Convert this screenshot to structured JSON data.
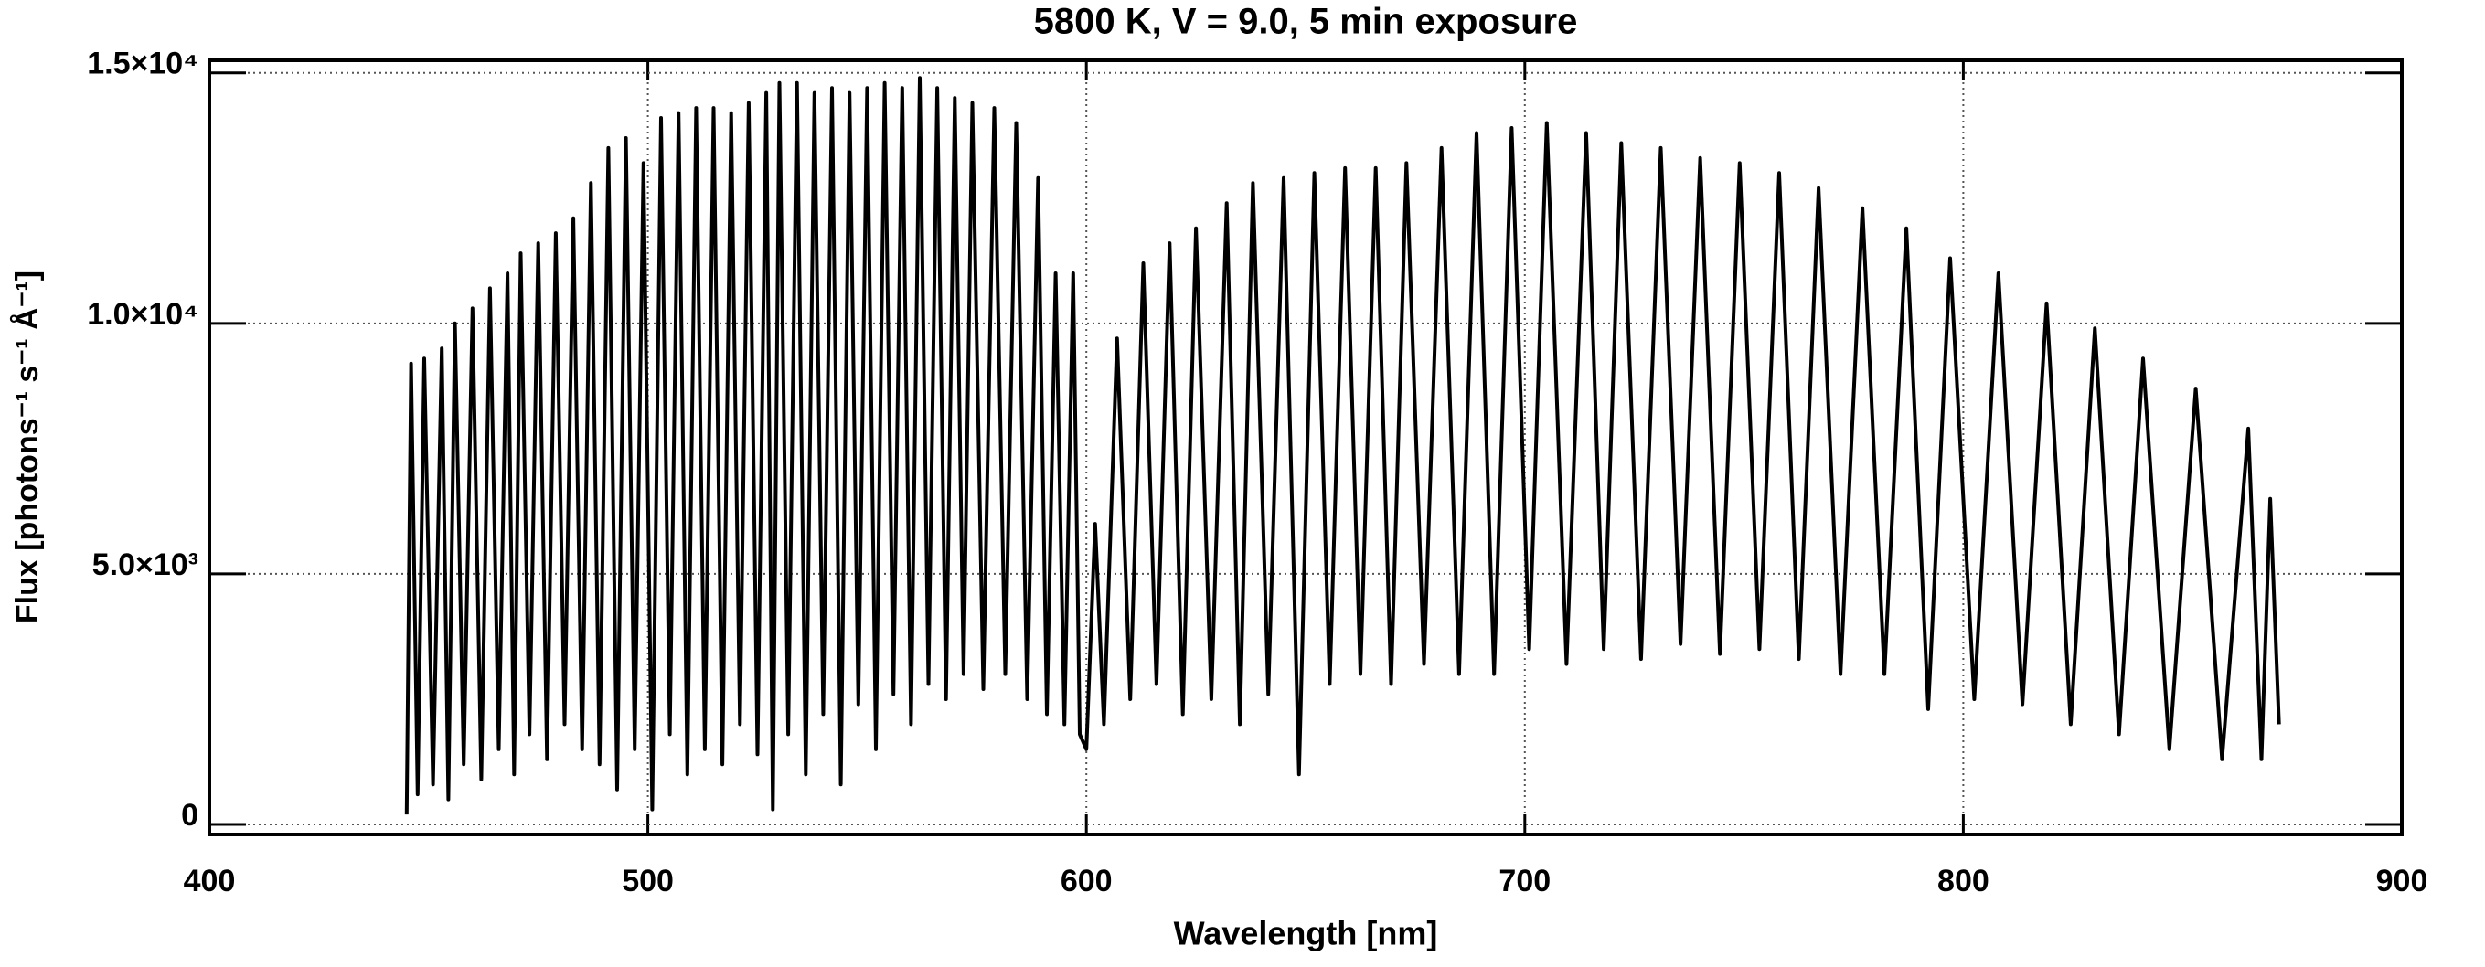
{
  "chart_data": {
    "type": "line",
    "title": "5800 K, V =  9.0, 5 min exposure",
    "x_label": "Wavelength [nm]",
    "y_label": "Flux [photons⁻¹ s⁻¹ Å⁻¹]",
    "xlim": [
      400,
      900
    ],
    "xticks": [
      400,
      500,
      600,
      700,
      800,
      900
    ],
    "ylim": [
      -200,
      15250
    ],
    "yticks": [
      0,
      {
        "value": 5000,
        "label": "5.0×10³"
      },
      {
        "value": 10000,
        "label": "1.0×10⁴"
      },
      {
        "value": 15000,
        "label": "1.5×10⁴"
      }
    ],
    "grid": true,
    "series": [
      {
        "color": "#000000",
        "x": [
          445,
          446,
          447.5,
          449,
          451,
          453,
          454.5,
          456,
          458,
          460,
          462,
          464,
          466,
          468,
          469.5,
          471,
          473,
          475,
          477,
          479,
          481,
          483,
          485,
          487,
          489,
          491,
          493,
          495,
          497,
          499,
          501,
          503,
          505,
          507,
          509,
          511,
          513,
          515,
          517,
          519,
          521,
          523,
          525,
          527,
          528.5,
          530,
          532,
          534,
          536,
          538,
          540,
          542,
          544,
          546,
          548,
          550,
          552,
          554,
          556,
          558,
          560,
          562,
          564,
          566,
          568,
          570,
          572,
          574,
          576.5,
          579,
          581.5,
          584,
          586.5,
          589,
          591,
          593,
          595,
          597,
          598.5,
          600,
          602,
          604,
          607,
          610,
          613,
          616,
          619,
          622,
          625,
          628.5,
          632,
          635,
          638,
          641.5,
          645,
          648.5,
          652,
          655.5,
          659,
          662.5,
          666,
          669.5,
          673,
          677,
          681,
          685,
          689,
          693,
          697,
          701,
          705,
          709.5,
          714,
          718,
          722,
          726.5,
          731,
          735.5,
          740,
          744.5,
          749,
          753.5,
          758,
          762.5,
          767,
          772,
          777,
          782,
          787,
          792,
          797,
          802.5,
          808,
          813.5,
          819,
          824.5,
          830,
          835.5,
          841,
          847,
          853,
          859,
          865,
          868,
          870,
          872
        ],
        "values": [
          200,
          9200,
          600,
          9300,
          800,
          9500,
          500,
          10000,
          1200,
          10300,
          900,
          10700,
          1500,
          11000,
          1000,
          11400,
          1800,
          11600,
          1300,
          11800,
          2000,
          12100,
          1500,
          12800,
          1200,
          13500,
          700,
          13700,
          1500,
          13200,
          300,
          14100,
          1800,
          14200,
          1000,
          14300,
          1500,
          14300,
          1200,
          14200,
          2000,
          14400,
          1400,
          14600,
          300,
          14800,
          1800,
          14800,
          1000,
          14600,
          2200,
          14700,
          800,
          14600,
          2400,
          14700,
          1500,
          14800,
          2600,
          14700,
          2000,
          14900,
          2800,
          14700,
          2500,
          14500,
          3000,
          14400,
          2700,
          14300,
          3000,
          14000,
          2500,
          12900,
          2200,
          11000,
          2000,
          11000,
          1800,
          1500,
          6000,
          2000,
          9700,
          2500,
          11200,
          2800,
          11600,
          2200,
          11900,
          2500,
          12400,
          2000,
          12800,
          2600,
          12900,
          1000,
          13000,
          2800,
          13100,
          3000,
          13100,
          2800,
          13200,
          3200,
          13500,
          3000,
          13800,
          3000,
          13900,
          3500,
          14000,
          3200,
          13800,
          3500,
          13600,
          3300,
          13500,
          3600,
          13300,
          3400,
          13200,
          3500,
          13000,
          3300,
          12700,
          3000,
          12300,
          3000,
          11900,
          2300,
          11300,
          2500,
          11000,
          2400,
          10400,
          2000,
          9900,
          1800,
          9300,
          1500,
          8700,
          1300,
          7900,
          1300,
          6500,
          2000
        ]
      }
    ]
  }
}
